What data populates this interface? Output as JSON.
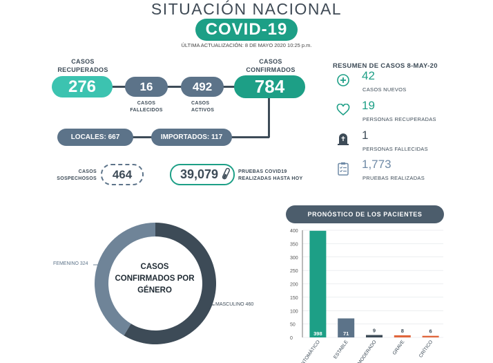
{
  "header": {
    "title": "SITUACIÓN NACIONAL",
    "badge": "COVID-19",
    "updated": "ÚLTIMA ACTUALIZACIÓN: 8 DE MAYO 2020 10:25 p.m."
  },
  "stats": {
    "recuperados_label_1": "CASOS",
    "recuperados_label_2": "RECUPERADOS",
    "recuperados": "276",
    "fallecidos": "16",
    "fallecidos_label_1": "CASOS",
    "fallecidos_label_2": "FALLECIDOS",
    "activos": "492",
    "activos_label_1": "CASOS",
    "activos_label_2": "ACTIVOS",
    "confirmados_label_1": "CASOS",
    "confirmados_label_2": "CONFIRMADOS",
    "confirmados": "784",
    "locales": "LOCALES: 667",
    "importados": "IMPORTADOS: 117",
    "sospechosos_label_1": "CASOS",
    "sospechosos_label_2": "SOSPECHOSOS",
    "sospechosos": "464",
    "pruebas": "39,079",
    "pruebas_label_1": "PRUEBAS COVID19",
    "pruebas_label_2": "REALIZADAS HASTA HOY"
  },
  "resumen": {
    "title": "RESUMEN DE CASOS 8-MAY-20",
    "items": [
      {
        "icon": "plus-circle-icon",
        "value": "42",
        "label": "CASOS NUEVOS"
      },
      {
        "icon": "heart-icon",
        "value": "19",
        "label": "PERSONAS RECUPERADAS"
      },
      {
        "icon": "tombstone-icon",
        "value": "1",
        "label": "PERSONAS FALLECIDAS"
      },
      {
        "icon": "clipboard-icon",
        "value": "1,773",
        "label": "PRUEBAS REALIZADAS"
      }
    ]
  },
  "colors": {
    "teal": "#1d9f86",
    "light_teal": "#3cc3b0",
    "slate": "#5c7389",
    "dark_slate": "#3d4b57",
    "orange": "#e0663c"
  },
  "chart_data": [
    {
      "type": "pie",
      "variant": "donut",
      "title": "CASOS CONFIRMADOS POR GÉNERO",
      "slices": [
        {
          "label": "MASCULINO",
          "value": 460,
          "color": "#3d4b57"
        },
        {
          "label": "FEMENINO",
          "value": 324,
          "color": "#6f8498"
        }
      ],
      "slice_labels": [
        "MASCULINO 460",
        "FEMENINO 324"
      ]
    },
    {
      "type": "bar",
      "title": "PRONÓSTICO DE LOS PACIENTES",
      "categories": [
        "ASINTOMÁTICO",
        "ESTABLE",
        "MODERADO",
        "GRAVE",
        "CRÍTICO"
      ],
      "category_labels": [
        "INTOMÁTICO",
        "ESTABLE",
        "MODERADO",
        "GRAVE",
        "CRÍTICO"
      ],
      "values": [
        398,
        71,
        9,
        8,
        6
      ],
      "colors": [
        "#1d9f86",
        "#5c7389",
        "#3d4b57",
        "#e0663c",
        "#e0663c"
      ],
      "ylim": [
        0,
        400
      ],
      "yticks": [
        0,
        50,
        100,
        150,
        200,
        250,
        300,
        350,
        400
      ],
      "grid": true
    }
  ]
}
